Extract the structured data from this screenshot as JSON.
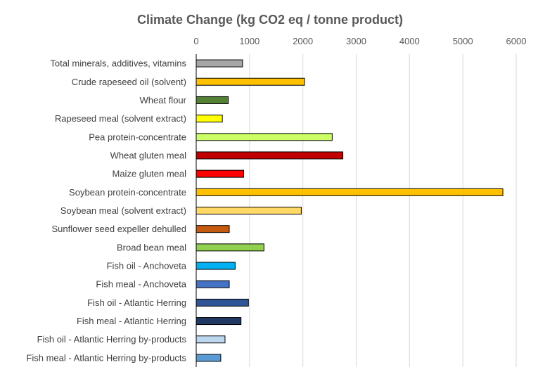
{
  "chart_data": {
    "type": "bar",
    "orientation": "horizontal",
    "title": "Climate Change (kg CO2 eq / tonne product)",
    "xlabel": "",
    "ylabel": "",
    "xlim": [
      0,
      6000
    ],
    "ticks": [
      0,
      1000,
      2000,
      3000,
      4000,
      5000,
      6000
    ],
    "grid": "vertical",
    "legend": "none",
    "categories": [
      "Total minerals, additives, vitamins",
      "Crude rapeseed oil (solvent)",
      "Wheat flour",
      "Rapeseed meal (solvent extract)",
      "Pea protein-concentrate",
      "Wheat gluten meal",
      "Maize gluten meal",
      "Soybean protein-concentrate",
      "Soybean meal (solvent extract)",
      "Sunflower seed expeller dehulled",
      "Broad bean meal",
      "Fish oil - Anchoveta",
      "Fish meal - Anchoveta",
      "Fish oil - Atlantic Herring",
      "Fish meal - Atlantic Herring",
      "Fish oil - Atlantic Herring by-products",
      "Fish meal - Atlantic Herring by-products"
    ],
    "values": [
      870,
      2030,
      600,
      490,
      2550,
      2750,
      890,
      5750,
      1970,
      620,
      1270,
      730,
      620,
      980,
      840,
      540,
      460
    ],
    "colors": [
      "#a6a6a6",
      "#ffc000",
      "#548235",
      "#ffff00",
      "#ccff66",
      "#c00000",
      "#ff0000",
      "#ffc000",
      "#ffd966",
      "#c55a11",
      "#92d050",
      "#00b0f0",
      "#4472c4",
      "#2f5597",
      "#203864",
      "#bdd7ee",
      "#5b9bd5"
    ]
  }
}
